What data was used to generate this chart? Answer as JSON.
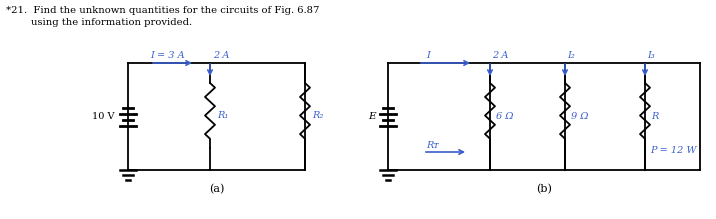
{
  "title_line1": "*21.  Find the unknown quantities for the circuits of Fig. 6.87",
  "title_line2": "        using the information provided.",
  "label_a": "(a)",
  "label_b": "(b)",
  "bg_color": "#ffffff",
  "text_color": "#000000",
  "circuit_color": "#000000",
  "blue_color": "#3a5fcd",
  "circuit_a": {
    "voltage_label": "10 V",
    "current_label": "I = 3 A",
    "current2_label": "2 A",
    "r1_label": "R₁",
    "r2_label": "R₂"
  },
  "circuit_b": {
    "voltage_label": "E",
    "current_label": "I",
    "current2_label": "2 A",
    "current3_label": "I₂",
    "current4_label": "I₃",
    "r1_label": "6 Ω",
    "r2_label": "9 Ω",
    "r3_label": "R",
    "rt_label": "Rᴛ",
    "power_label": "P = 12 W"
  }
}
